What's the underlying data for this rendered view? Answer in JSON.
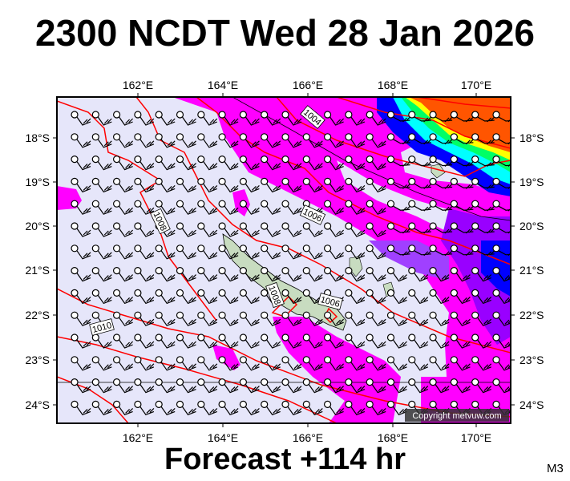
{
  "title": "2300 NCDT Wed 28 Jan 2026",
  "footer": "Forecast +114 hr",
  "model_label": "M3",
  "copyright": "Copyright metvuw.com",
  "longitude_labels": [
    "162°E",
    "164°E",
    "166°E",
    "168°E",
    "170°E"
  ],
  "latitude_labels": [
    "18°S",
    "19°S",
    "20°S",
    "21°S",
    "22°S",
    "23°S",
    "24°S"
  ],
  "isobar_labels": [
    "1004",
    "1006",
    "1006",
    "1008",
    "1008",
    "1010"
  ],
  "colors": {
    "background": "#e6e6fa",
    "rain_light": "#ff00ff",
    "rain_medium": "#9900ff",
    "rain_heavy": "#0000ff",
    "isobar": "#ff0000",
    "land": "#c8dcc0"
  },
  "icons": [
    "wind-barb-icon"
  ]
}
